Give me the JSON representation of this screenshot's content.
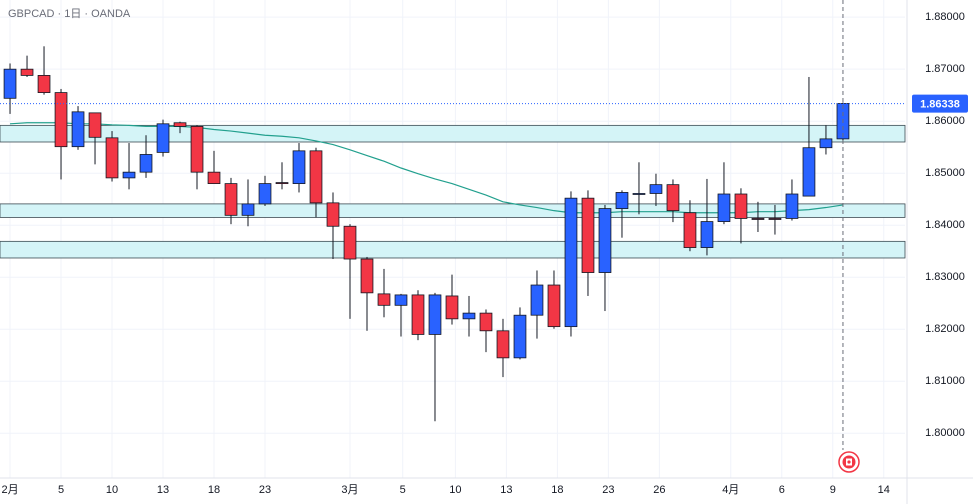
{
  "chart_data": {
    "type": "candlestick",
    "title": "GBPCAD · 1日 · OANDA",
    "up_color": "#2962ff",
    "down_color": "#f23645",
    "ylim": [
      1.7914,
      1.8833
    ],
    "xlim": [
      -0.59,
      52.65
    ],
    "yticks": [
      {
        "value": 1.8,
        "label": "1.80000"
      },
      {
        "value": 1.81,
        "label": "1.81000"
      },
      {
        "value": 1.82,
        "label": "1.82000"
      },
      {
        "value": 1.83,
        "label": "1.83000"
      },
      {
        "value": 1.84,
        "label": "1.84000"
      },
      {
        "value": 1.85,
        "label": "1.85000"
      },
      {
        "value": 1.86,
        "label": "1.86000"
      },
      {
        "value": 1.87,
        "label": "1.87000"
      },
      {
        "value": 1.88,
        "label": "1.88000"
      }
    ],
    "xticks": [
      {
        "value": 0,
        "label": "2月"
      },
      {
        "value": 3,
        "label": "5"
      },
      {
        "value": 6,
        "label": "10"
      },
      {
        "value": 9,
        "label": "13"
      },
      {
        "value": 12,
        "label": "18"
      },
      {
        "value": 15,
        "label": "23"
      },
      {
        "value": 20,
        "label": "3月"
      },
      {
        "value": 23.1,
        "label": "5"
      },
      {
        "value": 26.2,
        "label": "10"
      },
      {
        "value": 29.2,
        "label": "13"
      },
      {
        "value": 32.2,
        "label": "18"
      },
      {
        "value": 35.2,
        "label": "23"
      },
      {
        "value": 38.2,
        "label": "26"
      },
      {
        "value": 42.4,
        "label": "4月"
      },
      {
        "value": 45.4,
        "label": "6"
      },
      {
        "value": 48.4,
        "label": "9"
      },
      {
        "value": 51.4,
        "label": "14"
      }
    ],
    "open": [
      1.8644,
      1.87,
      1.8688,
      1.8655,
      1.8551,
      1.8616,
      1.8568,
      1.8491,
      1.8502,
      1.854,
      1.8597,
      1.859,
      1.8502,
      1.848,
      1.8419,
      1.8441,
      1.8482,
      1.848,
      1.8543,
      1.8443,
      1.8398,
      1.8335,
      1.8268,
      1.8246,
      1.8266,
      1.819,
      1.8264,
      1.822,
      1.8231,
      1.8197,
      1.8145,
      1.8227,
      1.8285,
      1.8205,
      1.8452,
      1.8309,
      1.8432,
      1.846,
      1.8461,
      1.8478,
      1.8424,
      1.8357,
      1.8407,
      1.846,
      1.8413,
      1.8413,
      1.8413,
      1.8456,
      1.8549,
      1.8566
    ],
    "high": [
      1.8711,
      1.8726,
      1.8744,
      1.8662,
      1.8629,
      1.8616,
      1.8581,
      1.8558,
      1.8573,
      1.8603,
      1.8599,
      1.8592,
      1.8543,
      1.8491,
      1.8488,
      1.8495,
      1.8521,
      1.8558,
      1.8549,
      1.8463,
      1.8402,
      1.8339,
      1.8316,
      1.8268,
      1.8275,
      1.827,
      1.8305,
      1.8264,
      1.8238,
      1.822,
      1.8242,
      1.8313,
      1.8313,
      1.8465,
      1.8467,
      1.8439,
      1.8467,
      1.8521,
      1.8499,
      1.8488,
      1.8448,
      1.8489,
      1.8521,
      1.8471,
      1.8445,
      1.8439,
      1.8488,
      1.8685,
      1.8592,
      1.8636
    ],
    "low": [
      1.8614,
      1.8685,
      1.8651,
      1.8488,
      1.8545,
      1.8517,
      1.8484,
      1.8469,
      1.8491,
      1.8532,
      1.8577,
      1.8469,
      1.848,
      1.8402,
      1.8398,
      1.8437,
      1.8469,
      1.8463,
      1.8415,
      1.8335,
      1.822,
      1.8197,
      1.8223,
      1.8186,
      1.8179,
      1.8023,
      1.8209,
      1.8186,
      1.8156,
      1.8108,
      1.8142,
      1.8182,
      1.8201,
      1.8186,
      1.8264,
      1.8235,
      1.8376,
      1.8421,
      1.8437,
      1.8406,
      1.835,
      1.8342,
      1.8402,
      1.8365,
      1.8387,
      1.8382,
      1.8409,
      1.8456,
      1.8536,
      1.8562
    ],
    "close": [
      1.87,
      1.8688,
      1.8655,
      1.8551,
      1.8618,
      1.8569,
      1.8491,
      1.8502,
      1.8536,
      1.8595,
      1.859,
      1.8502,
      1.848,
      1.8419,
      1.8441,
      1.848,
      1.848,
      1.8543,
      1.8443,
      1.8398,
      1.8335,
      1.827,
      1.8246,
      1.8266,
      1.819,
      1.8266,
      1.822,
      1.8231,
      1.8197,
      1.8145,
      1.8227,
      1.8285,
      1.8205,
      1.8452,
      1.8309,
      1.8432,
      1.8463,
      1.8461,
      1.8478,
      1.8428,
      1.8357,
      1.8407,
      1.846,
      1.8413,
      1.8411,
      1.8411,
      1.846,
      1.8549,
      1.8566,
      1.8634
    ],
    "ma": {
      "color": "#22a08e",
      "values": [
        1.8595,
        1.8597,
        1.8597,
        1.8597,
        1.8595,
        1.8595,
        1.8593,
        1.8592,
        1.859,
        1.859,
        1.859,
        1.8588,
        1.8584,
        1.8581,
        1.8577,
        1.8573,
        1.8571,
        1.8568,
        1.8562,
        1.8555,
        1.8545,
        1.8534,
        1.8523,
        1.851,
        1.8499,
        1.8489,
        1.848,
        1.8469,
        1.8458,
        1.8445,
        1.8439,
        1.8434,
        1.8428,
        1.8424,
        1.8424,
        1.8424,
        1.8426,
        1.8426,
        1.8426,
        1.8426,
        1.8424,
        1.8424,
        1.8424,
        1.8424,
        1.8426,
        1.8426,
        1.8428,
        1.843,
        1.8434,
        1.8439
      ]
    },
    "zones": [
      [
        1.8592,
        1.856
      ],
      [
        1.8441,
        1.8415
      ],
      [
        1.8369,
        1.8337
      ]
    ],
    "zone_color": "#d4f4f7",
    "last_price": 1.86338,
    "last_price_color": "#2962ff"
  }
}
